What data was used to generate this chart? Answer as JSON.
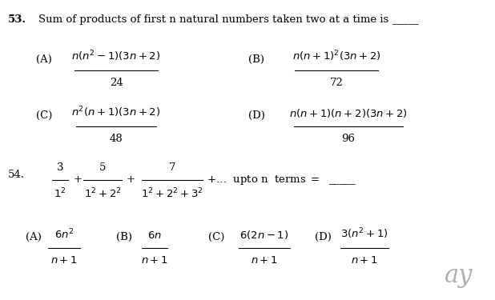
{
  "bg_color": "#ffffff",
  "text_color": "#000000",
  "fig_width": 6.18,
  "fig_height": 3.75,
  "dpi": 100,
  "q53_num": "53.",
  "q53_text": "Sum of products of first n natural numbers taken two at a time is \\_\\_\\_\\_\\_",
  "q53_A_label": "(A)",
  "q53_A_frac_num": "$n(n^{2}-1)(3n+2)$",
  "q53_A_frac_den": "24",
  "q53_B_label": "(B)",
  "q53_B_frac_num": "$n(n+1)^{2}(3n+2)$",
  "q53_B_frac_den": "72",
  "q53_C_label": "(C)",
  "q53_C_frac_num": "$n^{2}(n+1)(3n+2)$",
  "q53_C_frac_den": "48",
  "q53_D_label": "(D)",
  "q53_D_frac_num": "$n(n+1)(n+2)(3n+2)$",
  "q53_D_frac_den": "96",
  "q54_num": "54.",
  "q54_A_label": "(A)",
  "q54_A_frac_num": "$6n^{2}$",
  "q54_A_frac_den": "$n+1$",
  "q54_B_label": "(B)",
  "q54_B_frac_num": "$6n$",
  "q54_B_frac_den": "$n+1$",
  "q54_C_label": "(C)",
  "q54_C_frac_num": "$6(2n-1)$",
  "q54_C_frac_den": "$n+1$",
  "q54_D_label": "(D)",
  "q54_D_frac_num": "$3(n^{2}+1)$",
  "q54_D_frac_den": "$n+1$",
  "watermark": "ay",
  "fs_main": 9.5,
  "fs_math": 9.5,
  "fs_small": 8.5,
  "fs_watermark": 22
}
